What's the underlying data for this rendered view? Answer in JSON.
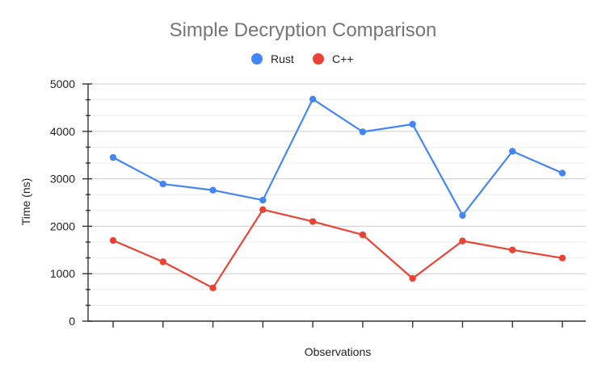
{
  "chart_data": {
    "type": "line",
    "title": "Simple Decryption Comparison",
    "xlabel": "Observations",
    "ylabel": "Time (ns)",
    "ylim": [
      0,
      5000
    ],
    "yticks": [
      0,
      1000,
      2000,
      3000,
      4000,
      5000
    ],
    "minor_grid": true,
    "legend_position": "top",
    "x": [
      1,
      2,
      3,
      4,
      5,
      6,
      7,
      8,
      9,
      10
    ],
    "series": [
      {
        "name": "Rust",
        "color": "#4285f4",
        "values": [
          3450,
          2890,
          2760,
          2550,
          4680,
          3990,
          4150,
          2230,
          3580,
          3120
        ]
      },
      {
        "name": "C++",
        "color": "#ea4335",
        "values": [
          1700,
          1250,
          700,
          2350,
          2100,
          1820,
          900,
          1690,
          1500,
          1330
        ]
      }
    ]
  }
}
